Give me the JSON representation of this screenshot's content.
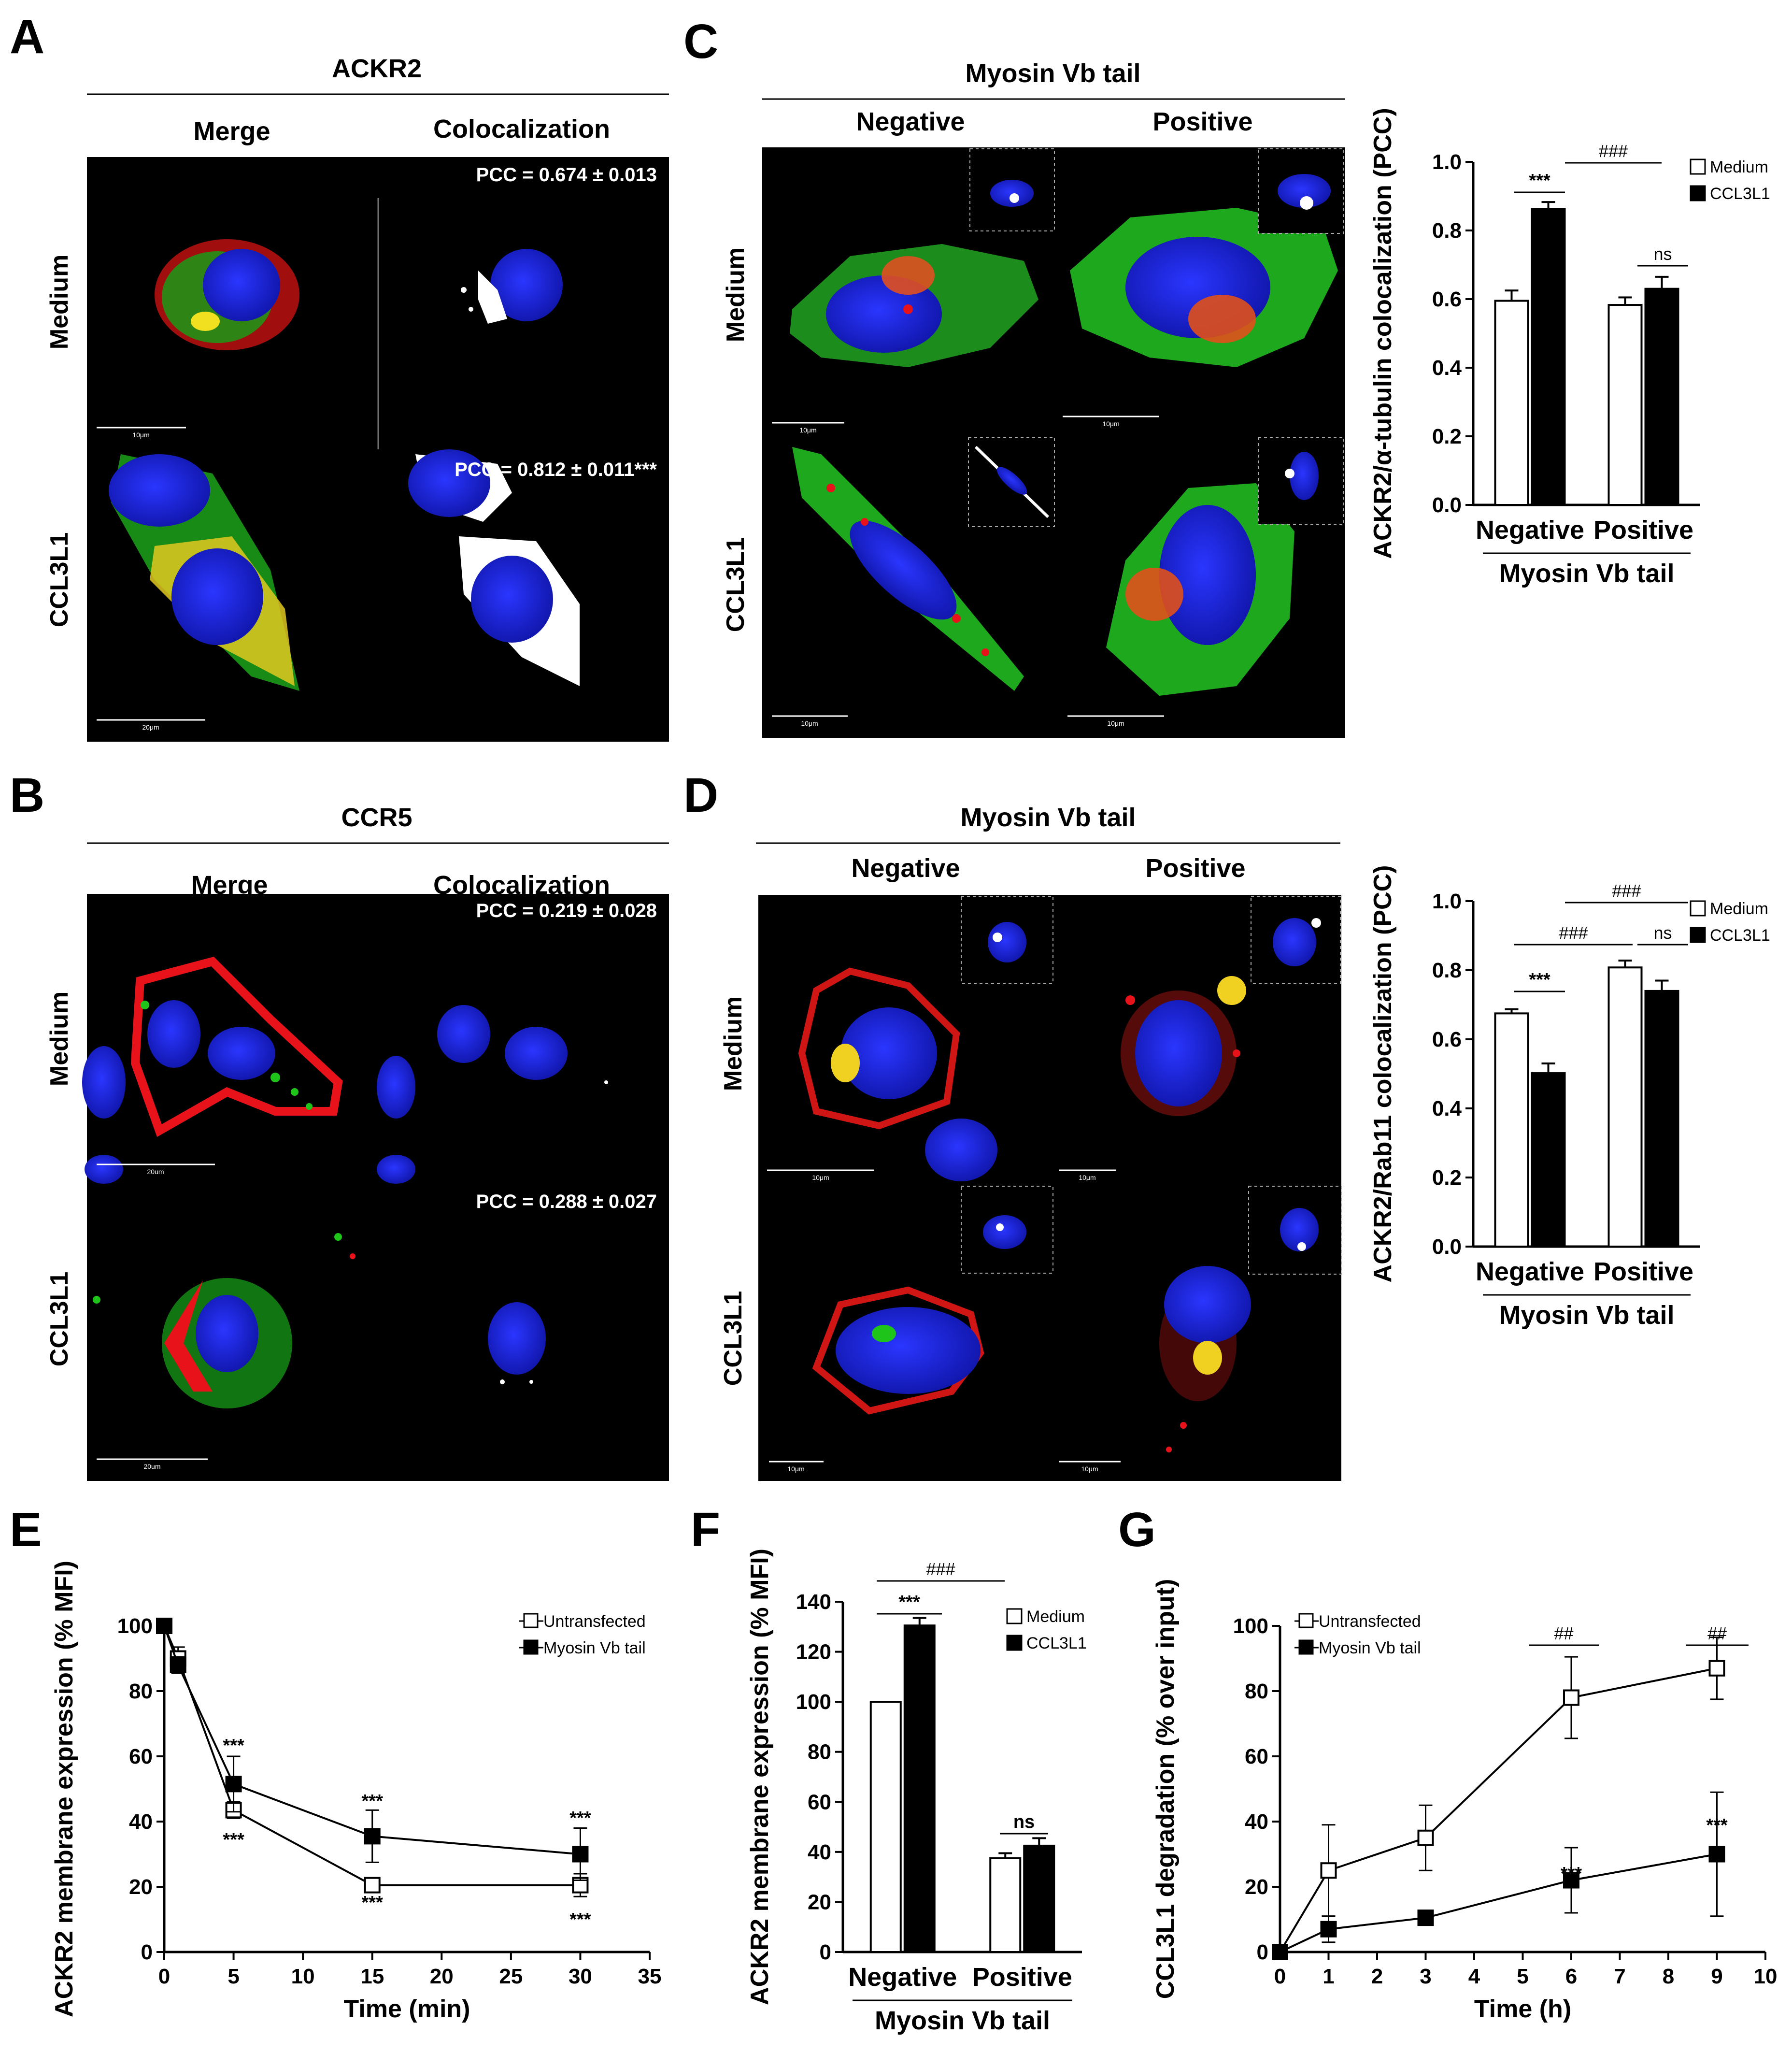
{
  "panels": {
    "A": {
      "label": "A",
      "title": "ACKR2",
      "columns": [
        "Merge",
        "Colocalization"
      ],
      "rows": [
        "Medium",
        "CCL3L1"
      ],
      "pcc": [
        "PCC = 0.674 ± 0.013",
        "PCC = 0.812 ± 0.011***"
      ],
      "scalebars": [
        "10μm",
        "20μm"
      ]
    },
    "B": {
      "label": "B",
      "title": "CCR5",
      "columns": [
        "Merge",
        "Colocalization"
      ],
      "rows": [
        "Medium",
        "CCL3L1"
      ],
      "pcc": [
        "PCC = 0.219 ± 0.028",
        "PCC = 0.288 ± 0.027"
      ],
      "scalebars": [
        "20um",
        "20um"
      ]
    },
    "C": {
      "label": "C",
      "title": "Myosin Vb tail",
      "columns": [
        "Negative",
        "Positive"
      ],
      "rows": [
        "Medium",
        "CCL3L1"
      ],
      "scalebars": [
        "10μm",
        "10μm",
        "10μm",
        "10μm"
      ]
    },
    "D": {
      "label": "D",
      "title": "Myosin Vb tail",
      "columns": [
        "Negative",
        "Positive"
      ],
      "rows": [
        "Medium",
        "CCL3L1"
      ],
      "scalebars": [
        "10μm",
        "10μm",
        "10μm",
        "10μm"
      ]
    },
    "E": {
      "label": "E"
    },
    "F": {
      "label": "F"
    },
    "G": {
      "label": "G"
    }
  },
  "colors": {
    "red": "#e8121a",
    "green": "#1fc41a",
    "blue": "#1a22e6",
    "yellow": "#f0e020",
    "white": "#ffffff"
  },
  "chart_data": [
    {
      "id": "C-bar",
      "type": "bar",
      "categories": [
        "Negative",
        "Positive"
      ],
      "group_label": "Myosin Vb tail",
      "series": [
        {
          "name": "Medium",
          "values": [
            0.595,
            0.583
          ],
          "errors": [
            0.03,
            0.022
          ]
        },
        {
          "name": "CCL3L1",
          "values": [
            0.863,
            0.63
          ],
          "errors": [
            0.02,
            0.035
          ]
        }
      ],
      "ylabel": "ACKR2/α-tubulin colocalization (PCC)",
      "ylim": [
        0,
        1.0
      ],
      "yticks": [
        "0.0",
        "0.2",
        "0.4",
        "0.6",
        "0.8",
        "1.0"
      ],
      "annotations": [
        "***",
        "ns",
        "###"
      ],
      "legend": "top-right"
    },
    {
      "id": "D-bar",
      "type": "bar",
      "categories": [
        "Negative",
        "Positive"
      ],
      "group_label": "Myosin Vb tail",
      "series": [
        {
          "name": "Medium",
          "values": [
            0.675,
            0.808
          ],
          "errors": [
            0.012,
            0.02
          ]
        },
        {
          "name": "CCL3L1",
          "values": [
            0.502,
            0.74
          ],
          "errors": [
            0.028,
            0.03
          ]
        }
      ],
      "ylabel": "ACKR2/Rab11 colocalization (PCC)",
      "ylim": [
        0,
        1.0
      ],
      "yticks": [
        "0.0",
        "0.2",
        "0.4",
        "0.6",
        "0.8",
        "1.0"
      ],
      "annotations": [
        "***",
        "###",
        "ns",
        "###"
      ],
      "legend": "top-right"
    },
    {
      "id": "E-line",
      "type": "line",
      "x": [
        0,
        1,
        5,
        15,
        30
      ],
      "series": [
        {
          "name": "Untransfected",
          "values": [
            100,
            90,
            43.5,
            20.5,
            20.5
          ],
          "errors": [
            0,
            3.5,
            2.5,
            1.5,
            3.5
          ]
        },
        {
          "name": "Myosin Vb tail",
          "values": [
            100,
            88,
            51.5,
            35.5,
            30
          ],
          "errors": [
            0,
            2.5,
            8.5,
            8,
            8
          ]
        }
      ],
      "xlabel": "Time (min)",
      "ylabel": "ACKR2 membrane expression (% MFI)",
      "xlim": [
        0,
        35
      ],
      "ylim": [
        0,
        100
      ],
      "xticks": [
        "0",
        "5",
        "10",
        "15",
        "20",
        "25",
        "30",
        "35"
      ],
      "yticks": [
        "0",
        "20",
        "40",
        "60",
        "80",
        "100"
      ],
      "annotations": [
        "***"
      ],
      "legend": "top-right"
    },
    {
      "id": "F-bar",
      "type": "bar",
      "categories": [
        "Negative",
        "Positive"
      ],
      "group_label": "Myosin Vb tail",
      "series": [
        {
          "name": "Medium",
          "values": [
            100,
            37.5
          ],
          "errors": [
            0,
            2
          ]
        },
        {
          "name": "CCL3L1",
          "values": [
            130.5,
            42.5
          ],
          "errors": [
            3,
            3
          ]
        }
      ],
      "ylabel": "ACKR2 membrane expression (% MFI)",
      "ylim": [
        0,
        140
      ],
      "yticks": [
        "0",
        "20",
        "40",
        "60",
        "80",
        "100",
        "120",
        "140"
      ],
      "annotations": [
        "***",
        "ns",
        "###"
      ],
      "legend": "top-right"
    },
    {
      "id": "G-line",
      "type": "line",
      "x": [
        0,
        1,
        3,
        6,
        9
      ],
      "series": [
        {
          "name": "Untransfected",
          "values": [
            0,
            25,
            35,
            78,
            87
          ],
          "errors": [
            0,
            14,
            10,
            12.5,
            9.5
          ]
        },
        {
          "name": "Myosin Vb tail",
          "values": [
            0,
            7,
            10.5,
            22,
            30
          ],
          "errors": [
            0,
            4,
            1,
            10,
            19
          ]
        }
      ],
      "xlabel": "Time (h)",
      "ylabel": "CCL3L1 degradation (% over input)",
      "xlim": [
        0,
        10
      ],
      "ylim": [
        0,
        100
      ],
      "xticks": [
        "0",
        "1",
        "2",
        "3",
        "4",
        "5",
        "6",
        "7",
        "8",
        "9",
        "10"
      ],
      "yticks": [
        "0",
        "20",
        "40",
        "60",
        "80",
        "100"
      ],
      "annotations": [
        "***",
        "##"
      ],
      "legend": "top-left"
    }
  ]
}
